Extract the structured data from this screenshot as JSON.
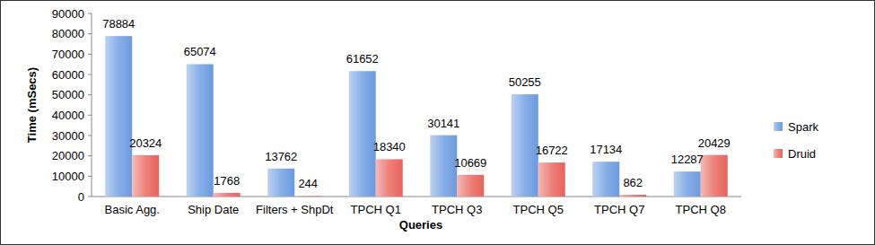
{
  "chart_data": {
    "type": "bar",
    "categories": [
      "Basic Agg.",
      "Ship Date",
      "Filters + ShpDt",
      "TPCH Q1",
      "TPCH Q3",
      "TPCH Q5",
      "TPCH Q7",
      "TPCH Q8"
    ],
    "series": [
      {
        "name": "Spark",
        "color": "#6a9be0",
        "values": [
          78884,
          65074,
          13762,
          61652,
          30141,
          50255,
          17134,
          12287
        ]
      },
      {
        "name": "Druid",
        "color": "#e8625a",
        "values": [
          20324,
          1768,
          244,
          18340,
          10669,
          16722,
          862,
          20429
        ]
      }
    ],
    "x_label": "Queries",
    "y_label": "Time (mSecs)",
    "ylim": [
      0,
      90000
    ],
    "yticks": [
      0,
      10000,
      20000,
      30000,
      40000,
      50000,
      60000,
      70000,
      80000,
      90000
    ],
    "grid": false,
    "legend": "right",
    "data_labels": true
  }
}
